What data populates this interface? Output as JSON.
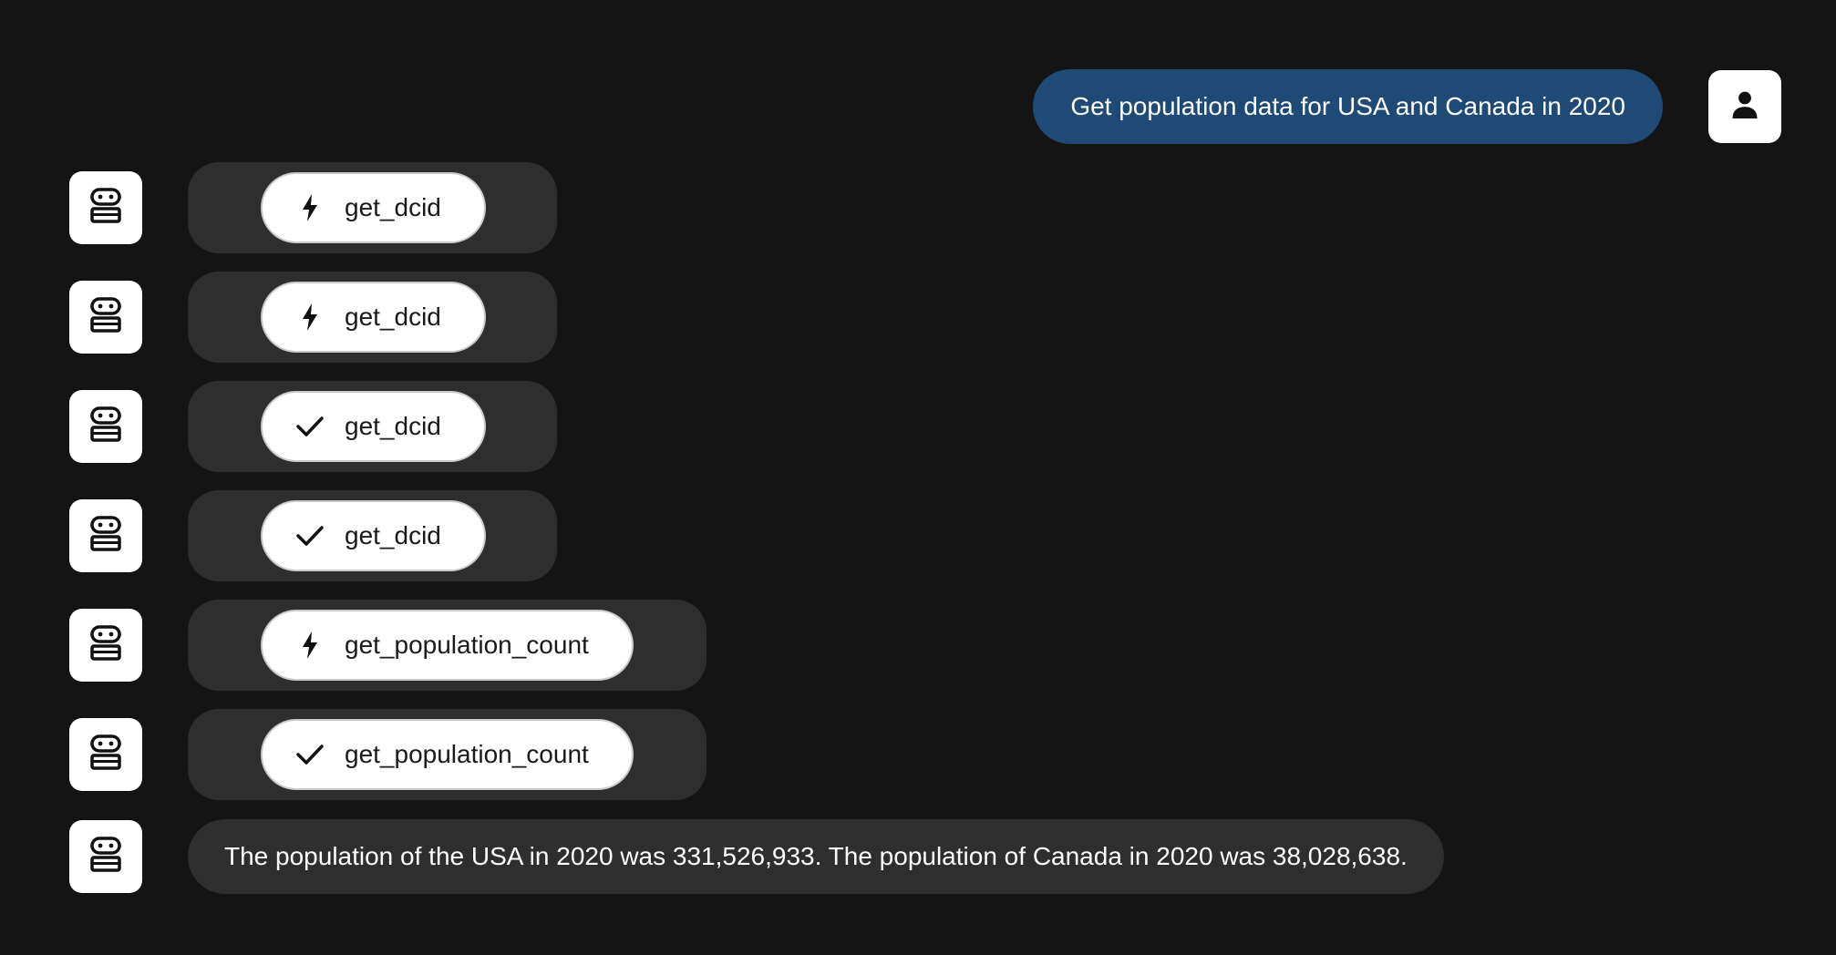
{
  "colors": {
    "background": "#141414",
    "user_bubble": "#1f4a76",
    "bot_container": "#2e2e2e",
    "avatar_bg": "#ffffff"
  },
  "user_message": {
    "text": "Get population data for USA and Canada in 2020",
    "avatar_icon": "person-icon"
  },
  "bot_avatar_icon": "robot-icon",
  "tool_calls": [
    {
      "label": "get_dcid",
      "status": "running",
      "icon": "bolt-icon"
    },
    {
      "label": "get_dcid",
      "status": "running",
      "icon": "bolt-icon"
    },
    {
      "label": "get_dcid",
      "status": "done",
      "icon": "check-icon"
    },
    {
      "label": "get_dcid",
      "status": "done",
      "icon": "check-icon"
    },
    {
      "label": "get_population_count",
      "status": "running",
      "icon": "bolt-icon"
    },
    {
      "label": "get_population_count",
      "status": "done",
      "icon": "check-icon"
    }
  ],
  "bot_response": {
    "text": "The population of the USA in 2020 was 331,526,933. The population of Canada in 2020 was 38,028,638."
  }
}
